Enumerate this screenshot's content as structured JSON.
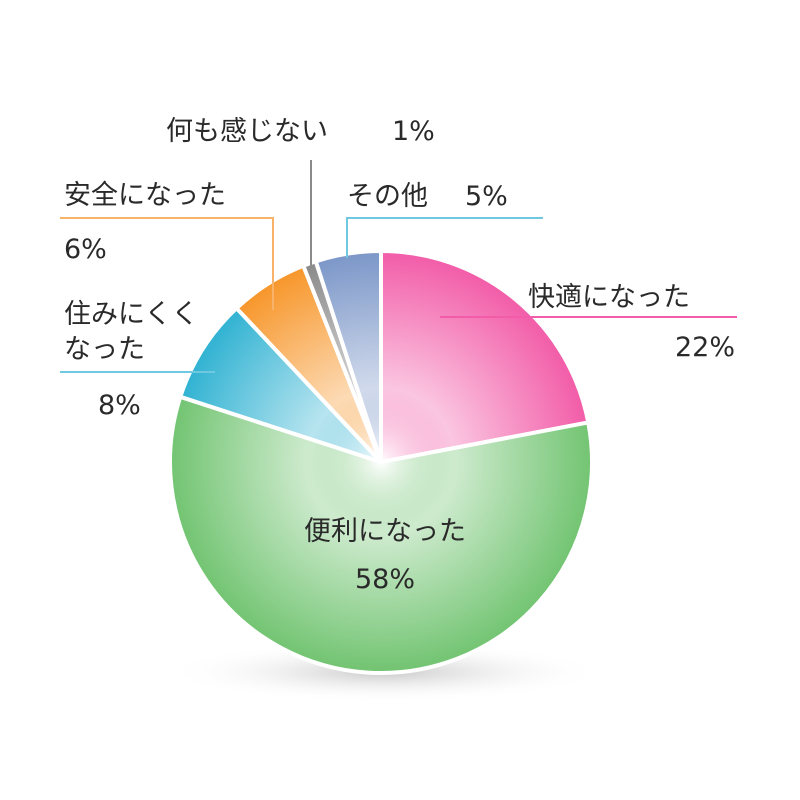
{
  "chart_data": {
    "type": "pie",
    "start": "top",
    "direction": "clockwise",
    "slices": [
      {
        "label": "快適になった",
        "value": 22,
        "value_label": "22%",
        "color": "#f25ca8"
      },
      {
        "label": "便利になった",
        "value": 58,
        "value_label": "58%",
        "color": "#72c472"
      },
      {
        "label": "住みにくくなった",
        "label_lines": [
          "住みにくく",
          "なった"
        ],
        "value": 8,
        "value_label": "8%",
        "color": "#30b2d2"
      },
      {
        "label": "安全になった",
        "value": 6,
        "value_label": "6%",
        "color": "#f7962a"
      },
      {
        "label": "何も感じない",
        "value": 1,
        "value_label": "1%",
        "color": "#8a8a8a"
      },
      {
        "label": "その他",
        "value": 5,
        "value_label": "5%",
        "color": "#7b96c8"
      }
    ]
  }
}
